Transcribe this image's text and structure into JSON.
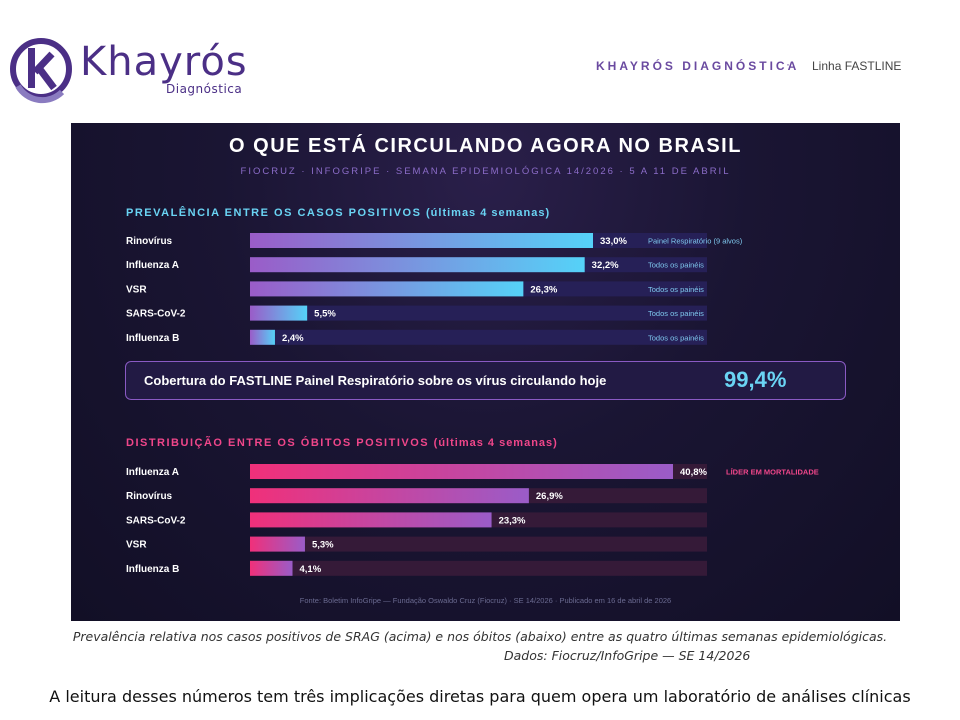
{
  "header": {
    "logo_name": "Khayrós",
    "logo_sub": "Diagnóstica",
    "brand": "KHAYRÓS DIAGNÓSTICA",
    "separator": "·",
    "line": "Linha FASTLINE"
  },
  "chart_data": [
    {
      "type": "bar",
      "orientation": "horizontal",
      "title": "O QUE ESTÁ CIRCULANDO AGORA NO BRASIL",
      "subtitle": "FIOCRUZ · INFOGRIPE · SEMANA EPIDEMIOLÓGICA 14/2026 · 5 A 11 DE ABRIL",
      "section_title": "PREVALÊNCIA ENTRE OS CASOS POSITIVOS",
      "section_period": "(últimas 4 semanas)",
      "categories": [
        "Rinovírus",
        "Influenza A",
        "VSR",
        "SARS-CoV-2",
        "Influenza B"
      ],
      "values": [
        33.0,
        32.2,
        26.3,
        5.5,
        2.4
      ],
      "value_labels": [
        "33,0%",
        "32,2%",
        "26,3%",
        "5,5%",
        "2,4%"
      ],
      "annotations": [
        "Painel Respiratório (9 alvos)",
        "Todos os painéis",
        "Todos os painéis",
        "Todos os painéis",
        "Todos os painéis"
      ],
      "xlim": [
        0,
        33.0
      ],
      "grid": false,
      "colors": {
        "start": "#9a5cc8",
        "end": "#55d2f8",
        "track": "#262057"
      }
    },
    {
      "type": "bar",
      "orientation": "horizontal",
      "section_title": "DISTRIBUIÇÃO ENTRE OS ÓBITOS POSITIVOS",
      "section_period": "(últimas 4 semanas)",
      "categories": [
        "Influenza A",
        "Rinovírus",
        "SARS-CoV-2",
        "VSR",
        "Influenza B"
      ],
      "values": [
        40.8,
        26.9,
        23.3,
        5.3,
        4.1
      ],
      "value_labels": [
        "40,8%",
        "26,9%",
        "23,3%",
        "5,3%",
        "4,1%"
      ],
      "annotations": [
        "LÍDER EM MORTALIDADE",
        "",
        "",
        "",
        ""
      ],
      "xlim": [
        0,
        40.8
      ],
      "grid": false,
      "colors": {
        "start": "#f0307a",
        "end": "#9a5cc8",
        "track": "#351a38",
        "accent": "#f0468a"
      }
    }
  ],
  "coverage": {
    "label": "Cobertura do FASTLINE Painel Respiratório sobre os vírus circulando hoje",
    "value": "99,4%"
  },
  "source": "Fonte: Boletim InfoGripe — Fundação Oswaldo Cruz (Fiocruz) · SE 14/2026 · Publicado em 16 de abril de 2026",
  "caption": {
    "line1": "Prevalência relativa nos casos positivos de SRAG (acima) e nos óbitos (abaixo) entre as quatro últimas semanas epidemiológicas.",
    "line2": "Dados: Fiocruz/InfoGripe — SE 14/2026"
  },
  "body_text": "A leitura desses números tem três implicações diretas para quem opera um laboratório de análises clínicas"
}
